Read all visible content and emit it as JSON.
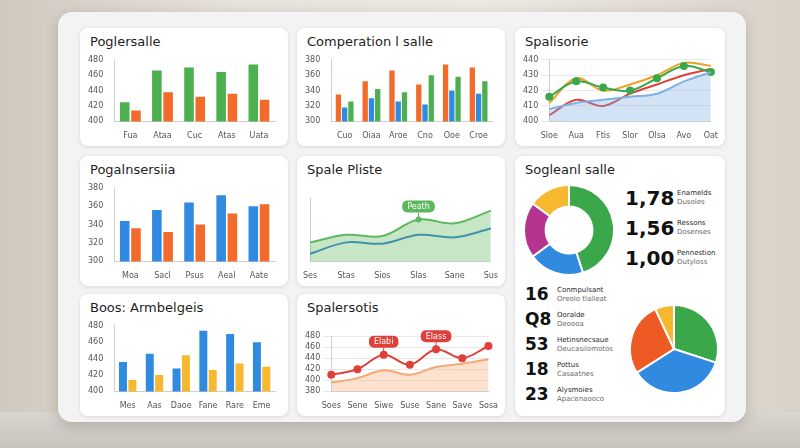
{
  "chart_data": [
    {
      "type": "bar",
      "title": "Poglersalle",
      "categories": [
        "Fua",
        "Ataa",
        "Cuc",
        "Atas",
        "Uata"
      ],
      "series": [
        {
          "color": "#4caf50",
          "values": [
            425,
            466,
            470,
            464,
            474
          ]
        },
        {
          "color": "#f26b2b",
          "values": [
            414,
            438,
            432,
            436,
            428
          ]
        }
      ],
      "ylim": [
        400,
        480
      ],
      "yticks": [
        400,
        420,
        440,
        460,
        480
      ],
      "grid": false
    },
    {
      "type": "bar",
      "title": "Comperation l salle",
      "categories": [
        "Cuo",
        "Oiaa",
        "Aroe",
        "Cno",
        "Ooe",
        "Croe"
      ],
      "series": [
        {
          "color": "#f26b2b",
          "values": [
            335,
            352,
            366,
            348,
            374,
            370
          ]
        },
        {
          "color": "#2f8ae0",
          "values": [
            318,
            330,
            326,
            322,
            340,
            336
          ]
        },
        {
          "color": "#4caf50",
          "values": [
            326,
            342,
            338,
            360,
            358,
            352
          ]
        }
      ],
      "ylim": [
        300,
        380
      ],
      "yticks": [
        300,
        320,
        340,
        360,
        380
      ],
      "grid": false
    },
    {
      "type": "line",
      "title": "Spalisorie",
      "categories": [
        "Sloe",
        "Aua",
        "Ftis",
        "Slor",
        "Olsa",
        "Avo",
        "Oat"
      ],
      "series": [
        {
          "type": "area",
          "color": "#7fb0e6",
          "values": [
            408,
            412,
            414,
            416,
            418,
            426,
            432
          ]
        },
        {
          "color": "#3aa84a",
          "marker": "circle",
          "values": [
            416,
            426,
            422,
            420,
            428,
            436,
            432
          ]
        },
        {
          "color": "#f0a020",
          "values": [
            412,
            428,
            420,
            424,
            430,
            438,
            436
          ]
        },
        {
          "color": "#e0403a",
          "values": [
            404,
            414,
            410,
            418,
            424,
            430,
            434
          ]
        }
      ],
      "ylim": [
        400,
        440
      ],
      "yticks": [
        400,
        410,
        420,
        430,
        440
      ],
      "grid": true
    },
    {
      "type": "bar",
      "title": "Pogalnsersiia",
      "categories": [
        "Moa",
        "Sacl",
        "Psus",
        "Aeal",
        "Aate"
      ],
      "series": [
        {
          "color": "#2f8ae0",
          "values": [
            344,
            356,
            364,
            372,
            360
          ]
        },
        {
          "color": "#f26b2b",
          "values": [
            336,
            332,
            340,
            352,
            362
          ]
        }
      ],
      "ylim": [
        300,
        380
      ],
      "yticks": [
        300,
        320,
        340,
        360,
        380
      ],
      "grid": false
    },
    {
      "type": "line",
      "title": "Spale Pliste",
      "categories": [
        "Ses",
        "Stas",
        "Sios",
        "Slas",
        "Sane",
        "Sus"
      ],
      "series": [
        {
          "type": "area",
          "color": "#5cb85c",
          "values": [
            30,
            42,
            40,
            66,
            60,
            80
          ]
        },
        {
          "color": "#2f7fd8",
          "values": [
            12,
            30,
            28,
            42,
            38,
            52
          ]
        }
      ],
      "annotations": [
        {
          "text": "Peath",
          "category": "Slas"
        }
      ],
      "ylim": [
        0,
        100
      ],
      "tick_labels": "x",
      "grid": false
    },
    {
      "type": "bar",
      "title": "Boos: Armbelgeis",
      "categories": [
        "Mes",
        "Aas",
        "Daoe",
        "Fane",
        "Rare",
        "Eme"
      ],
      "series": [
        {
          "color": "#2f8ae0",
          "values": [
            436,
            446,
            428,
            474,
            470,
            460
          ]
        },
        {
          "color": "#f5b82e",
          "values": [
            414,
            420,
            444,
            426,
            434,
            430
          ]
        }
      ],
      "ylim": [
        400,
        480
      ],
      "yticks": [
        400,
        420,
        440,
        460,
        480
      ],
      "grid": false
    },
    {
      "type": "line",
      "title": "Spalersotis",
      "categories": [
        "Soes",
        "Sene",
        "Siwe",
        "Suse",
        "Sane",
        "Save",
        "Sosa"
      ],
      "series": [
        {
          "type": "area",
          "color": "#f5a872",
          "values": [
            396,
            404,
            418,
            410,
            424,
            430,
            438
          ]
        },
        {
          "color": "#e0403a",
          "marker": "circle",
          "values": [
            410,
            420,
            446,
            428,
            456,
            440,
            462
          ]
        }
      ],
      "annotations": [
        {
          "text": "Elabi",
          "category": "Siwe"
        },
        {
          "text": "Elass",
          "category": "Sane"
        }
      ],
      "ylim": [
        380,
        480
      ],
      "yticks": [
        380,
        400,
        420,
        440,
        460,
        480
      ],
      "grid": true
    },
    {
      "type": "doughnut",
      "title": "Sogleanl salle",
      "values": [
        45,
        20,
        20,
        15
      ],
      "colors": [
        "#3aa84a",
        "#2f8ae0",
        "#b5348f",
        "#f5b82e"
      ]
    },
    {
      "type": "pie",
      "values": [
        30,
        36,
        27,
        7
      ],
      "colors": [
        "#3aa84a",
        "#2f8ae0",
        "#ee5a24",
        "#f5b82e"
      ]
    }
  ],
  "stats": [
    {
      "value": "1,78",
      "label": "Enamelds",
      "sublabel": "Dusoles"
    },
    {
      "value": "1,56",
      "label": "Ressons",
      "sublabel": "Dosenses"
    },
    {
      "value": "1,00",
      "label": "Pennestion",
      "sublabel": "Outyloss"
    }
  ],
  "list": [
    {
      "value": "16",
      "label": "Conmpulsant",
      "sublabel": "Oreolo tlalleat"
    },
    {
      "value": "Q8",
      "label": "Ooralde",
      "sublabel": "Deoooa"
    },
    {
      "value": "53",
      "label": "Hetinsnecsaue",
      "sublabel": "Oeucasilomotos"
    },
    {
      "value": "18",
      "label": "Pottus",
      "sublabel": "Casaatnes"
    },
    {
      "value": "23",
      "label": "Alysmoies",
      "sublabel": "Apacenaooco"
    }
  ]
}
